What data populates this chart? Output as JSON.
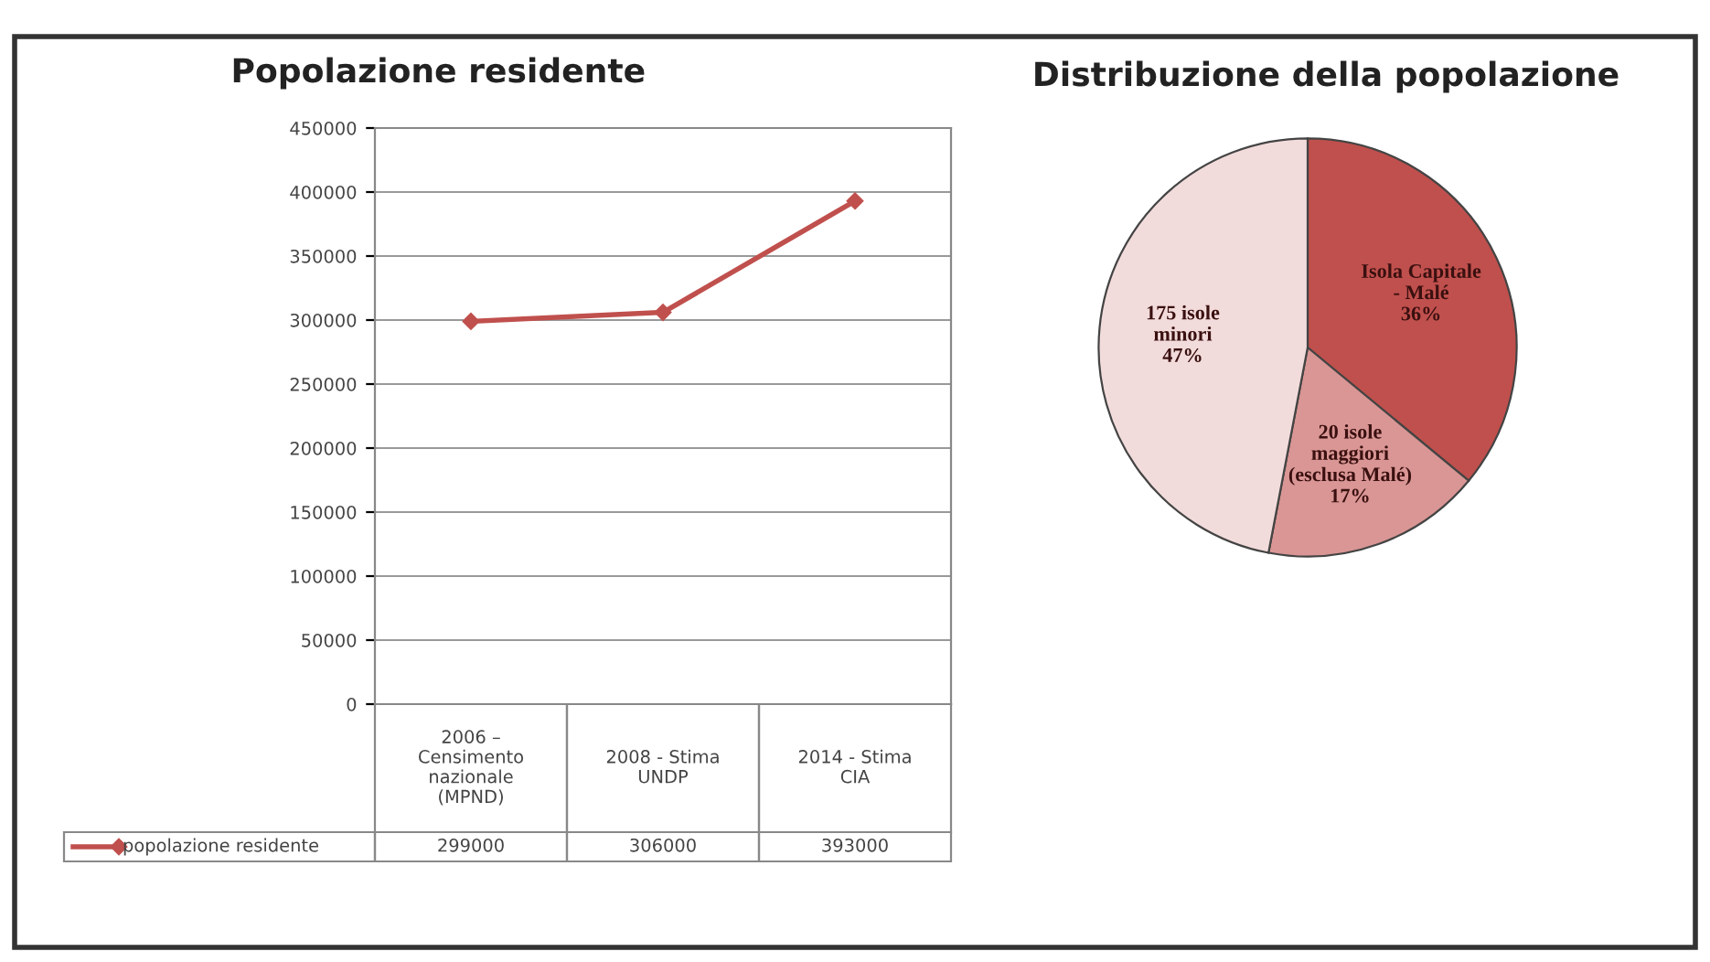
{
  "chart_data": [
    {
      "type": "line",
      "title": "Popolazione residente",
      "categories": [
        "2006 –\nCensimento\nnazionale\n(MPND)",
        "2008 - Stima\nUNDP",
        "2014 - Stima\nCIA"
      ],
      "series": [
        {
          "name": "popolazione residente",
          "color": "#c0504d",
          "values": [
            299000,
            306000,
            393000
          ]
        }
      ],
      "ylim": [
        0,
        450000
      ],
      "yticks": [
        0,
        50000,
        100000,
        150000,
        200000,
        250000,
        300000,
        350000,
        400000,
        450000
      ],
      "grid": "y",
      "marker": "diamond",
      "data_labels": true,
      "legend": "bottom"
    },
    {
      "type": "pie",
      "title": "Distribuzione della popolazione",
      "categories": [
        "Isola Capitale\n- Malé",
        "20 isole\nmaggiori\n(esclusa Malé)",
        "175 isole\nminori"
      ],
      "values": [
        36,
        17,
        47
      ],
      "colors": [
        "#c0504d",
        "#d99694",
        "#f2dcdb"
      ],
      "value_labels": [
        "36%",
        "17%",
        "47%"
      ]
    }
  ]
}
